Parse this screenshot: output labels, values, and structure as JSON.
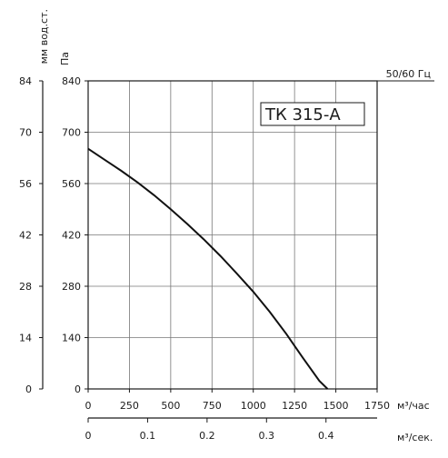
{
  "chart_data": {
    "type": "line",
    "model_label": "ТК 315-А",
    "frequency_label": "50/60 Гц",
    "left_axis_unit": "мм вод.ст.",
    "pressure_axis_unit": "Па",
    "x_axis_unit": "м³/час",
    "x_axis_unit_secondary": "м³/сек.",
    "x": {
      "ticks": [
        0,
        250,
        500,
        750,
        1000,
        1250,
        1500,
        1750
      ],
      "range": [
        0,
        1750
      ]
    },
    "x_secondary": {
      "ticks": [
        0,
        0.1,
        0.2,
        0.3,
        0.4
      ],
      "tick_labels": [
        "0",
        "0.1",
        "0.2",
        "0.3",
        "0.4"
      ],
      "range": [
        0,
        0.486
      ]
    },
    "y": {
      "ticks": [
        0,
        140,
        280,
        420,
        560,
        700,
        840
      ],
      "range": [
        0,
        840
      ]
    },
    "y_secondary": {
      "ticks": [
        0,
        14,
        28,
        42,
        56,
        70,
        84
      ],
      "range": [
        0,
        84
      ]
    },
    "grid": true,
    "series": [
      {
        "x": [
          0,
          100,
          200,
          300,
          400,
          500,
          600,
          700,
          800,
          900,
          1000,
          1100,
          1200,
          1300,
          1400,
          1450
        ],
        "y": [
          655,
          625,
          595,
          563,
          528,
          490,
          450,
          408,
          363,
          315,
          265,
          210,
          150,
          85,
          22,
          0
        ]
      }
    ]
  }
}
